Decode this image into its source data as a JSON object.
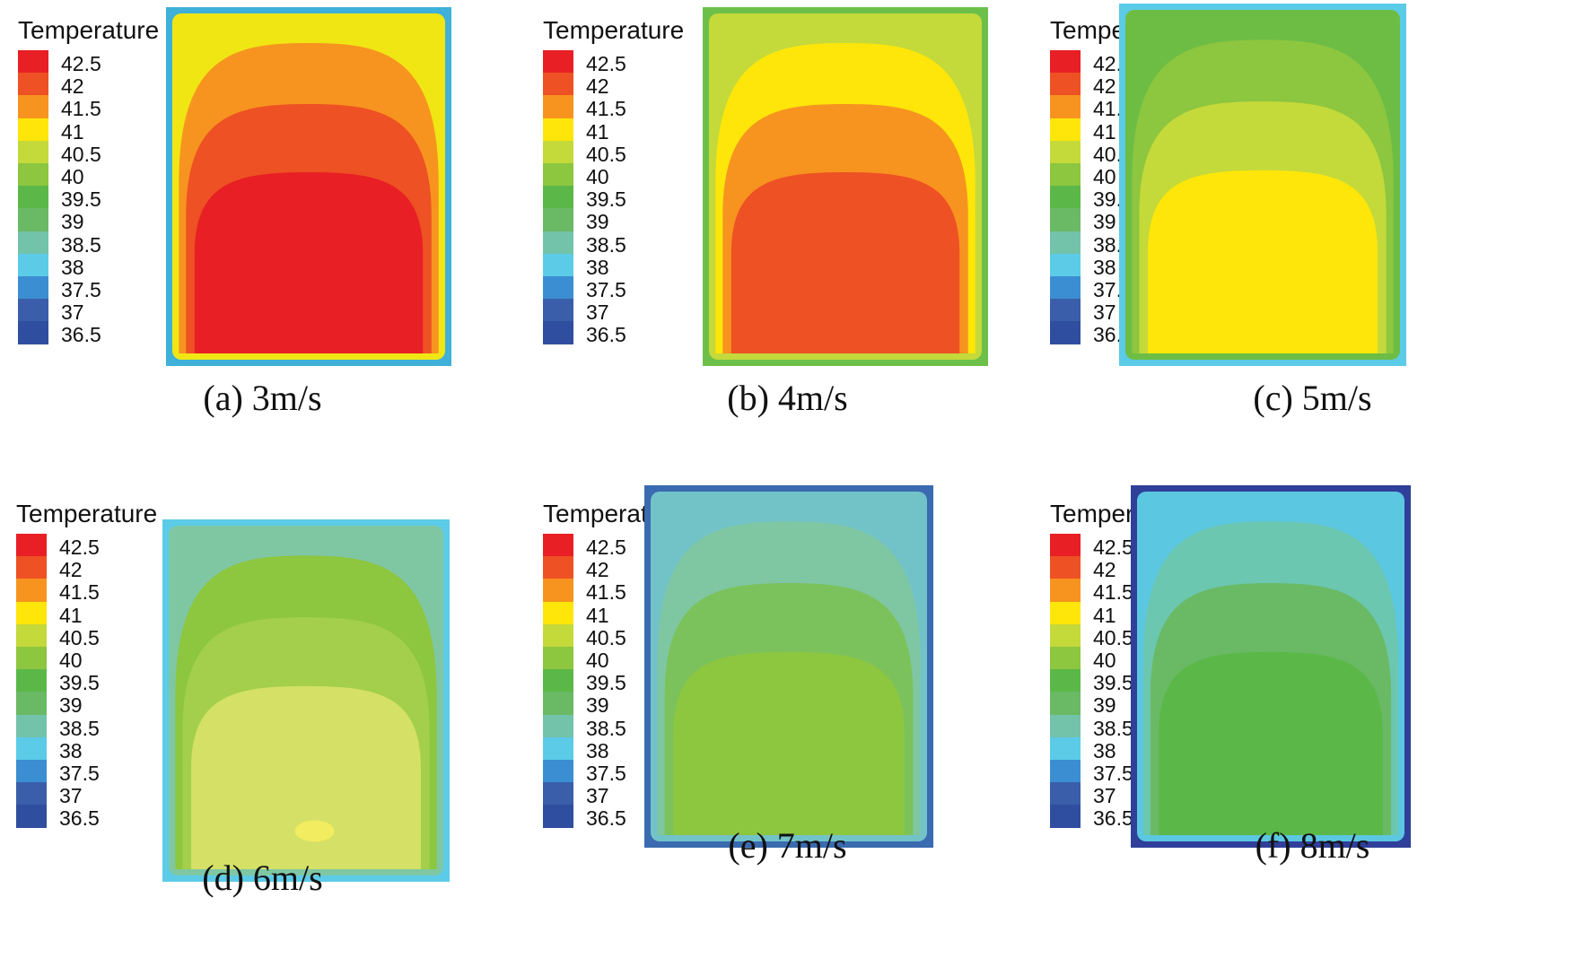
{
  "legend": {
    "title": "Temperature",
    "ticks": [
      "42.5",
      "42",
      "41.5",
      "41",
      "40.5",
      "40",
      "39.5",
      "39",
      "38.5",
      "38",
      "37.5",
      "37",
      "36.5"
    ],
    "colors": [
      "#e81f25",
      "#ee5124",
      "#f7941f",
      "#ffe60a",
      "#c4d93a",
      "#8dc63f",
      "#5bb848",
      "#6ab965",
      "#72c3a9",
      "#5ccbe8",
      "#3b8ed2",
      "#3a5ea9",
      "#2f4e9f"
    ]
  },
  "panels": [
    {
      "caption": "(a) 3m/s",
      "border": "#3fb0d8",
      "zones": [
        "#f0e614",
        "#f7941f",
        "#ee5124",
        "#e81f25"
      ]
    },
    {
      "caption": "(b) 4m/s",
      "border": "#6cc04a",
      "zones": [
        "#c4d93a",
        "#ffe60a",
        "#f7941f",
        "#ee5124"
      ]
    },
    {
      "caption": "(c) 5m/s",
      "border": "#5ccbe8",
      "zones": [
        "#6dbd45",
        "#8dc63f",
        "#c4d93a",
        "#ffe60a"
      ]
    },
    {
      "caption": "(d) 6m/s",
      "border": "#5ccbe8",
      "zones": [
        "#7fc7a3",
        "#8dc63f",
        "#a3cf4c",
        "#d4e066"
      ],
      "hotspot": "#f2ec60"
    },
    {
      "caption": "(e) 7m/s",
      "border": "#3a6ab0",
      "zones": [
        "#72c3c8",
        "#7fc7a3",
        "#7cc25c",
        "#8dc63f"
      ]
    },
    {
      "caption": "(f) 8m/s",
      "border": "#2f3f9a",
      "zones": [
        "#5bc7e0",
        "#6cc7b0",
        "#6ab965",
        "#5bb848"
      ]
    }
  ]
}
